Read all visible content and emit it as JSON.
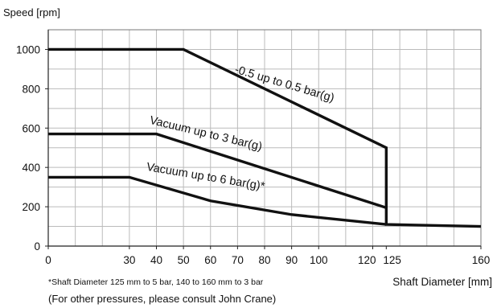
{
  "chart_data": {
    "type": "line",
    "ylabel": "Speed [rpm]",
    "xlabel": "Shaft Diameter [mm]",
    "x_ticks": [
      0,
      30,
      40,
      50,
      60,
      70,
      80,
      90,
      100,
      120,
      125,
      160
    ],
    "y_ticks": [
      0,
      200,
      400,
      600,
      800,
      1000
    ],
    "xlim": [
      0,
      160
    ],
    "ylim": [
      0,
      1100
    ],
    "grid": true,
    "series": [
      {
        "name": "-0.5 up to 0.5 bar(g)",
        "points": [
          [
            0,
            1000
          ],
          [
            50,
            1000
          ],
          [
            125,
            500
          ],
          [
            125,
            110
          ],
          [
            160,
            100
          ]
        ]
      },
      {
        "name": "Vacuum up to 3 bar(g)",
        "points": [
          [
            0,
            570
          ],
          [
            40,
            570
          ],
          [
            125,
            195
          ]
        ]
      },
      {
        "name": "Vacuum up to 6 bar(g)*",
        "points": [
          [
            0,
            350
          ],
          [
            30,
            350
          ],
          [
            60,
            230
          ],
          [
            90,
            160
          ],
          [
            125,
            110
          ]
        ]
      }
    ],
    "footnote": "*Shaft Diameter 125 mm to 5 bar, 140 to 160 mm to 3 bar",
    "note": "(For other pressures, please consult John Crane)",
    "line_color": "#111111",
    "grid_color": "#bbbbbb"
  }
}
